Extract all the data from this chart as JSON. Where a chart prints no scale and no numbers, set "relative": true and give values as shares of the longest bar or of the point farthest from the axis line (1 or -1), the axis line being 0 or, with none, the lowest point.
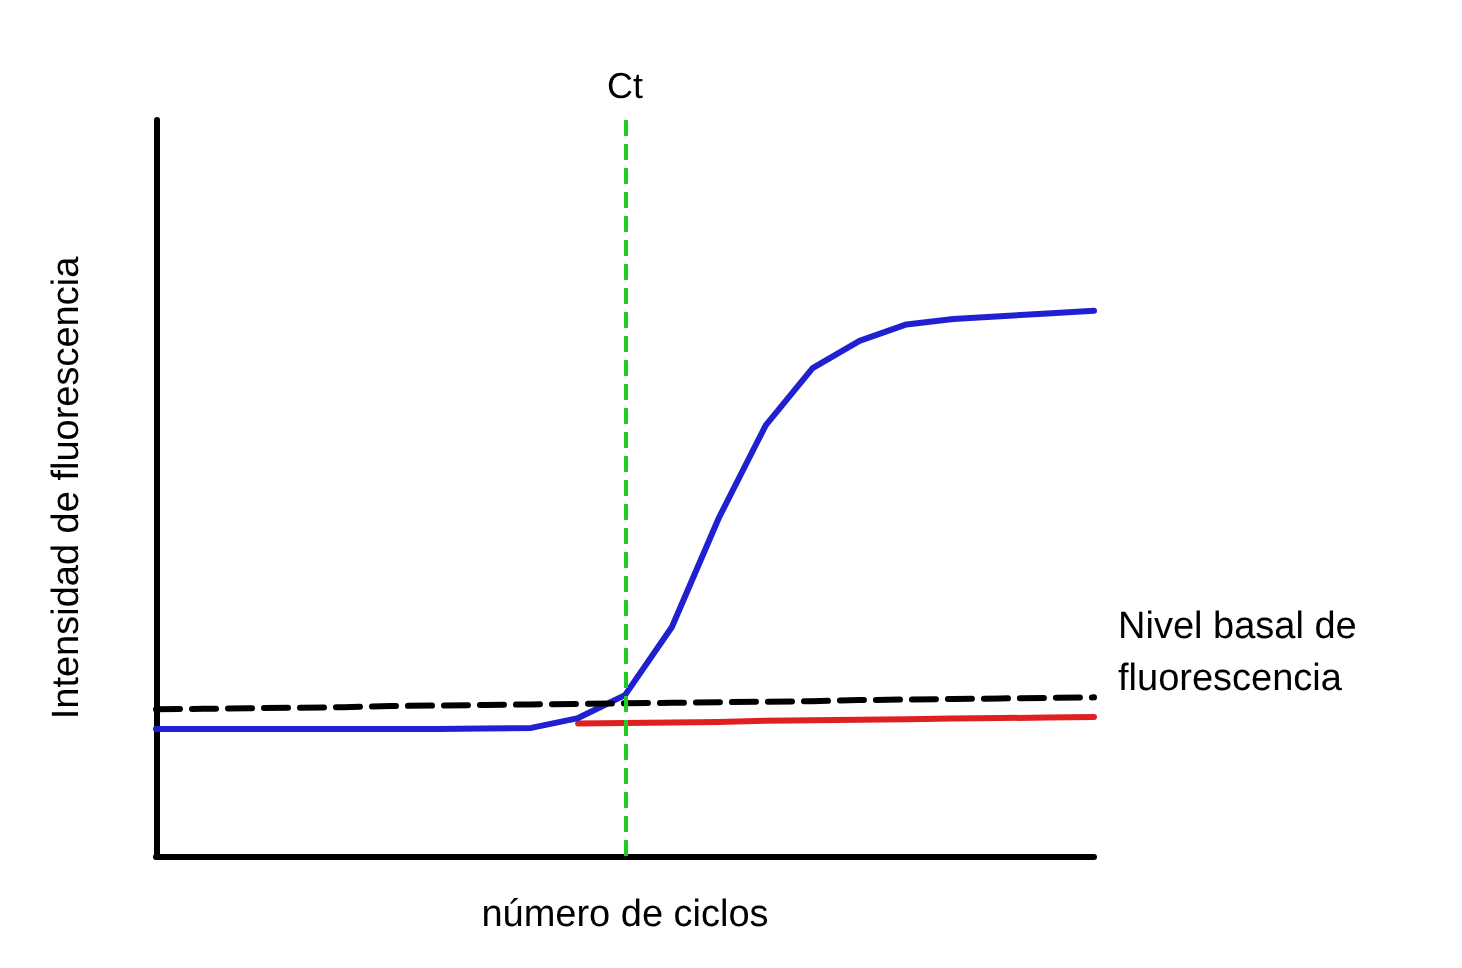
{
  "chart_data": {
    "type": "line",
    "relative": true,
    "xlabel": "número de ciclos",
    "ylabel": "Intensidad de fluorescencia",
    "grid": false,
    "marker": "none",
    "categories": [
      null,
      null,
      null,
      null,
      null,
      null,
      null,
      null,
      null,
      null,
      null,
      null,
      null,
      null,
      null,
      null,
      null,
      null,
      null,
      null,
      null
    ],
    "series": [
      {
        "color": "#e02020",
        "values": [
          null,
          null,
          null,
          null,
          null,
          null,
          null,
          null,
          null,
          0.243,
          0.244,
          0.245,
          0.246,
          0.248,
          0.249,
          0.25,
          0.251,
          0.252,
          0.253,
          0.254,
          0.255
        ]
      },
      {
        "color": "#2020d0",
        "values": [
          0.233,
          0.233,
          0.233,
          0.233,
          0.233,
          0.233,
          0.233,
          0.234,
          0.235,
          0.253,
          0.295,
          0.42,
          0.62,
          0.79,
          0.895,
          0.945,
          0.975,
          0.985,
          0.99,
          0.995,
          1
        ]
      },
      {
        "color": "#000000",
        "line_style": "dashed",
        "values": [
          0.269,
          0.27,
          0.271,
          0.272,
          0.273,
          0.275,
          0.276,
          0.277,
          0.278,
          0.279,
          0.28,
          0.281,
          0.282,
          0.283,
          0.284,
          0.286,
          0.287,
          0.288,
          0.289,
          0.29,
          0.291
        ]
      }
    ],
    "annotations": [
      "Ct",
      "Nivel basal de fluorescencia"
    ]
  }
}
